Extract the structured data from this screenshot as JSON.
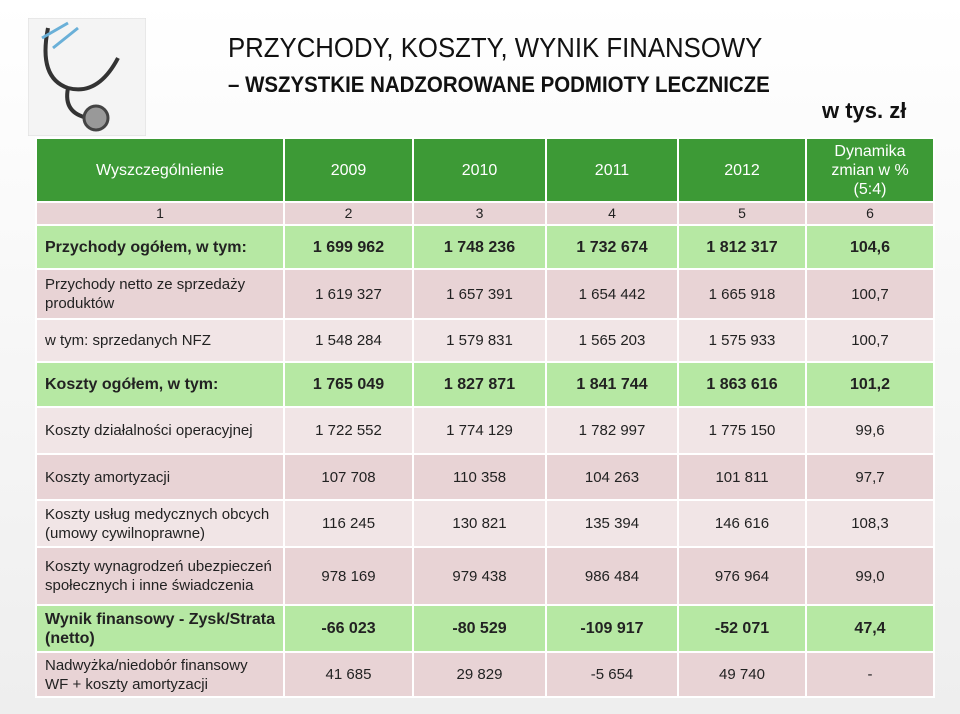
{
  "header": {
    "title": "PRZYCHODY, KOSZTY, WYNIK FINANSOWY",
    "subtitle": "– WSZYSTKIE NADZOROWANE PODMIOTY LECZNICZE",
    "unit": "w tys. zł"
  },
  "table": {
    "columns": [
      "Wyszczególnienie",
      "2009",
      "2010",
      "2011",
      "2012",
      "Dynamika zmian w % (5:4)"
    ],
    "index": [
      "1",
      "2",
      "3",
      "4",
      "5",
      "6"
    ],
    "rows": [
      [
        "Przychody ogółem, w tym:",
        "1 699 962",
        "1 748 236",
        "1 732 674",
        "1 812 317",
        "104,6"
      ],
      [
        "Przychody netto ze sprzedaży produktów",
        "1 619 327",
        "1 657 391",
        "1 654 442",
        "1 665 918",
        "100,7"
      ],
      [
        "w tym: sprzedanych  NFZ",
        "1 548 284",
        "1 579 831",
        "1 565 203",
        "1 575 933",
        "100,7"
      ],
      [
        "Koszty ogółem, w tym:",
        "1 765 049",
        "1 827 871",
        "1 841 744",
        "1 863 616",
        "101,2"
      ],
      [
        "Koszty działalności operacyjnej",
        "1 722 552",
        "1 774 129",
        "1 782 997",
        "1 775 150",
        "99,6"
      ],
      [
        "Koszty amortyzacji",
        "107 708",
        "110 358",
        "104 263",
        "101 811",
        "97,7"
      ],
      [
        "Koszty usług medycznych obcych (umowy cywilnoprawne)",
        "116 245",
        "130 821",
        "135 394",
        "146 616",
        "108,3"
      ],
      [
        "Koszty wynagrodzeń ubezpieczeń społecznych i inne świadczenia",
        "978 169",
        "979 438",
        "986 484",
        "976 964",
        "99,0"
      ],
      [
        "Wynik finansowy - Zysk/Strata (netto)",
        "-66 023",
        "-80 529",
        "-109 917",
        "-52 071",
        "47,4"
      ],
      [
        "Nadwyżka/niedobór finansowy WF + koszty amortyzacji",
        "41 685",
        "29 829",
        "-5 654",
        "49 740",
        "-"
      ]
    ]
  }
}
